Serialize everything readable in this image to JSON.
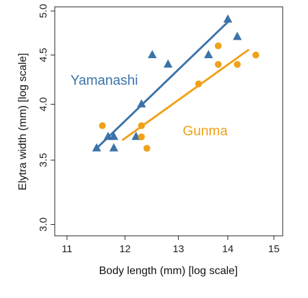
{
  "chart_data": {
    "type": "scatter",
    "xlabel": "Body length (mm) [log scale]",
    "ylabel": "Elytra width (mm) [log scale]",
    "x_scale": "log",
    "y_scale": "log",
    "xlim": [
      10.8,
      15.2
    ],
    "ylim": [
      2.92,
      5.05
    ],
    "x_ticks": [
      11,
      12,
      13,
      14,
      15
    ],
    "y_ticks": [
      3.0,
      3.5,
      4.0,
      4.5,
      5.0
    ],
    "x_tick_labels": [
      "11",
      "12",
      "13",
      "14",
      "15"
    ],
    "y_tick_labels": [
      "3.0",
      "3.5",
      "4.0",
      "4.5",
      "5.0"
    ],
    "grid": false,
    "legend": "none",
    "series": [
      {
        "name": "Yamanashi",
        "color": "#3a73a8",
        "marker": "triangle",
        "points": [
          [
            11.5,
            3.6
          ],
          [
            11.7,
            3.7
          ],
          [
            11.8,
            3.7
          ],
          [
            11.8,
            3.6
          ],
          [
            12.2,
            3.7
          ],
          [
            12.3,
            4.0
          ],
          [
            12.5,
            4.5
          ],
          [
            12.8,
            4.4
          ],
          [
            13.6,
            4.5
          ],
          [
            14.0,
            4.9
          ],
          [
            14.2,
            4.7
          ]
        ],
        "fit_line": [
          [
            11.5,
            3.6
          ],
          [
            14.0,
            4.87
          ]
        ]
      },
      {
        "name": "Gunma",
        "color": "#f0a11a",
        "marker": "circle",
        "points": [
          [
            11.6,
            3.8
          ],
          [
            12.3,
            3.8
          ],
          [
            12.3,
            3.7
          ],
          [
            12.4,
            3.6
          ],
          [
            13.4,
            4.2
          ],
          [
            13.8,
            4.6
          ],
          [
            13.8,
            4.4
          ],
          [
            14.2,
            4.4
          ],
          [
            14.6,
            4.5
          ]
        ],
        "fit_line": [
          [
            11.95,
            3.67
          ],
          [
            14.45,
            4.56
          ]
        ]
      }
    ]
  }
}
